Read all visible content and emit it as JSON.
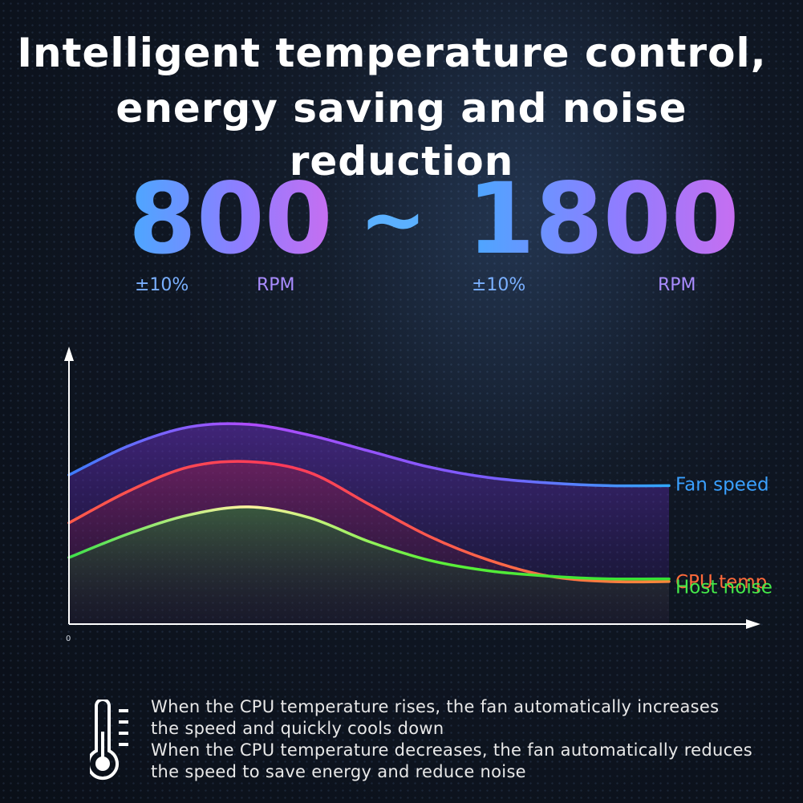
{
  "title_line1": "Intelligent temperature control,",
  "title_line2": "energy saving and noise reduction",
  "range": {
    "low": "800",
    "separator": "~",
    "high": "1800",
    "tolerance": "±10%",
    "unit": "RPM"
  },
  "chart_data": {
    "type": "line",
    "title": "",
    "xlabel": "",
    "ylabel": "",
    "x_origin_label": "0",
    "x": [
      0,
      10,
      20,
      30,
      40,
      50,
      60,
      70,
      80,
      90,
      100
    ],
    "ylim": [
      0,
      100
    ],
    "grid": false,
    "legend": "right-end labels",
    "series": [
      {
        "name": "Fan speed",
        "color": "#3aa0ff",
        "values": [
          56,
          67,
          74,
          75,
          71,
          65,
          59,
          55,
          53,
          52,
          52
        ]
      },
      {
        "name": "CPU temp",
        "color": "#ff6a3a",
        "values": [
          38,
          50,
          59,
          61,
          57,
          45,
          33,
          24,
          18,
          16,
          16
        ]
      },
      {
        "name": "Host noise",
        "color": "#44e84a",
        "values": [
          25,
          34,
          41,
          44,
          40,
          31,
          24,
          20,
          18,
          17,
          17
        ]
      }
    ]
  },
  "description": {
    "line1": "When the CPU temperature rises, the fan automatically increases",
    "line2": "the speed and quickly cools down",
    "line3": "When the CPU temperature decreases, the fan automatically reduces",
    "line4": "the speed to save energy and reduce noise"
  },
  "icons": {
    "thermometer": "thermometer-icon"
  }
}
